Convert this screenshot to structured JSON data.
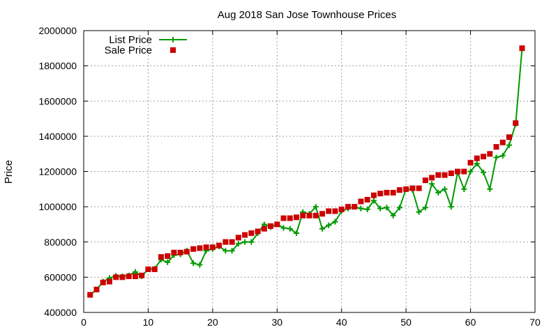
{
  "chart_data": {
    "type": "scatter",
    "title": "Aug 2018 San Jose Townhouse Prices",
    "xlabel": "",
    "ylabel": "Price",
    "xlim": [
      0,
      70
    ],
    "ylim": [
      400000,
      2000000
    ],
    "xticks": [
      "0",
      "10",
      "20",
      "30",
      "40",
      "50",
      "60",
      "70"
    ],
    "yticks": [
      "400000",
      "600000",
      "800000",
      "1000000",
      "1200000",
      "1400000",
      "1600000",
      "1800000",
      "2000000"
    ],
    "grid": true,
    "legend_position": "top-left",
    "series": [
      {
        "name": "List Price",
        "style": "line-with-plus-markers",
        "color": "#009900",
        "x": [
          1,
          2,
          3,
          4,
          5,
          6,
          7,
          8,
          9,
          10,
          11,
          12,
          13,
          14,
          15,
          16,
          17,
          18,
          19,
          20,
          21,
          22,
          23,
          24,
          25,
          26,
          27,
          28,
          29,
          30,
          31,
          32,
          33,
          34,
          35,
          36,
          37,
          38,
          39,
          40,
          41,
          42,
          43,
          44,
          45,
          46,
          47,
          48,
          49,
          50,
          51,
          52,
          53,
          54,
          55,
          56,
          57,
          58,
          59,
          60,
          61,
          62,
          63,
          64,
          65,
          66,
          67,
          68
        ],
        "y": [
          500000,
          530000,
          575000,
          595000,
          608000,
          605000,
          610000,
          630000,
          605000,
          645000,
          648000,
          700000,
          685000,
          725000,
          730000,
          750000,
          680000,
          670000,
          750000,
          760000,
          775000,
          750000,
          750000,
          790000,
          800000,
          800000,
          850000,
          900000,
          885000,
          900000,
          880000,
          875000,
          850000,
          970000,
          960000,
          1000000,
          875000,
          895000,
          915000,
          975000,
          990000,
          1000000,
          990000,
          985000,
          1035000,
          990000,
          995000,
          950000,
          995000,
          1100000,
          1095000,
          970000,
          995000,
          1130000,
          1080000,
          1100000,
          1000000,
          1195000,
          1100000,
          1200000,
          1245000,
          1195000,
          1100000,
          1280000,
          1290000,
          1350000,
          1470000,
          1900000
        ]
      },
      {
        "name": "Sale Price",
        "style": "square-markers",
        "color": "#cc0000",
        "x": [
          1,
          2,
          3,
          4,
          5,
          6,
          7,
          8,
          9,
          10,
          11,
          12,
          13,
          14,
          15,
          16,
          17,
          18,
          19,
          20,
          21,
          22,
          23,
          24,
          25,
          26,
          27,
          28,
          29,
          30,
          31,
          32,
          33,
          34,
          35,
          36,
          37,
          38,
          39,
          40,
          41,
          42,
          43,
          44,
          45,
          46,
          47,
          48,
          49,
          50,
          51,
          52,
          53,
          54,
          55,
          56,
          57,
          58,
          59,
          60,
          61,
          62,
          63,
          64,
          65,
          66,
          67,
          68
        ],
        "y": [
          500000,
          530000,
          570000,
          575000,
          600000,
          600000,
          605000,
          605000,
          610000,
          645000,
          645000,
          715000,
          720000,
          740000,
          740000,
          745000,
          760000,
          765000,
          770000,
          770000,
          780000,
          800000,
          800000,
          825000,
          840000,
          850000,
          860000,
          875000,
          890000,
          900000,
          935000,
          935000,
          940000,
          950000,
          950000,
          950000,
          960000,
          975000,
          975000,
          985000,
          1000000,
          1000000,
          1030000,
          1040000,
          1065000,
          1075000,
          1080000,
          1080000,
          1095000,
          1100000,
          1105000,
          1105000,
          1150000,
          1165000,
          1180000,
          1180000,
          1190000,
          1200000,
          1200000,
          1250000,
          1275000,
          1285000,
          1300000,
          1340000,
          1365000,
          1395000,
          1475000,
          1900000
        ]
      }
    ]
  }
}
